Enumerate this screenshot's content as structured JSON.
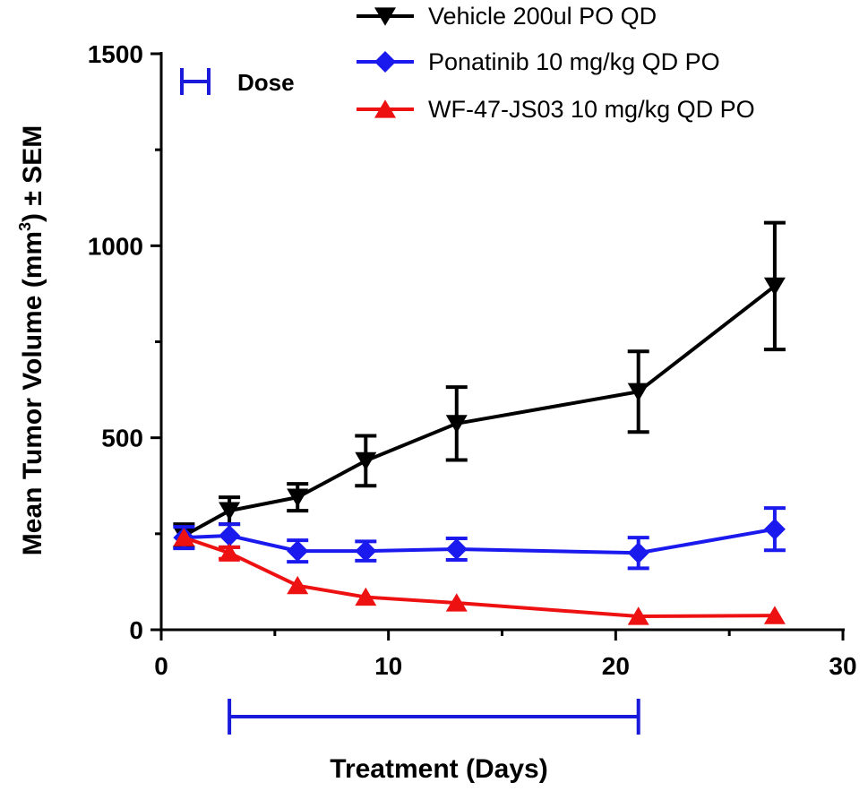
{
  "chart_data": {
    "type": "line",
    "ylabel": "Mean Tumor Volume (mm",
    "ylabel_sup": "3",
    "ylabel_suffix": ") ± SEM",
    "xlabel": "Treatment  (Days)",
    "xlim": [
      0,
      30
    ],
    "ylim": [
      0,
      1500
    ],
    "x_ticks": [
      0,
      10,
      20,
      30
    ],
    "y_ticks": [
      0,
      500,
      1000,
      1500
    ],
    "grid": false,
    "legend_position": "top-right",
    "dose_label": "Dose",
    "dose_color": "#1a1adb",
    "treatment_period": [
      3,
      21
    ],
    "series": [
      {
        "name": "Vehicle 200ul PO QD",
        "color": "#000000",
        "marker": "triangle-down",
        "x": [
          1,
          3,
          6,
          9,
          13,
          21,
          27
        ],
        "y": [
          245,
          310,
          345,
          440,
          537,
          620,
          895
        ],
        "err": [
          30,
          35,
          35,
          65,
          95,
          105,
          165
        ]
      },
      {
        "name": "Ponatinib 10 mg/kg QD PO",
        "color": "#1a1aee",
        "marker": "diamond",
        "x": [
          1,
          3,
          6,
          9,
          13,
          21,
          27
        ],
        "y": [
          240,
          245,
          205,
          205,
          210,
          200,
          262
        ],
        "err": [
          28,
          30,
          28,
          25,
          28,
          40,
          55
        ]
      },
      {
        "name": "WF-47-JS03 10 mg/kg QD PO",
        "color": "#ee1111",
        "marker": "triangle-up",
        "x": [
          1,
          3,
          6,
          9,
          13,
          21,
          27
        ],
        "y": [
          240,
          200,
          115,
          85,
          70,
          35,
          37
        ],
        "err": [
          0,
          15,
          0,
          0,
          0,
          0,
          0
        ]
      }
    ]
  }
}
